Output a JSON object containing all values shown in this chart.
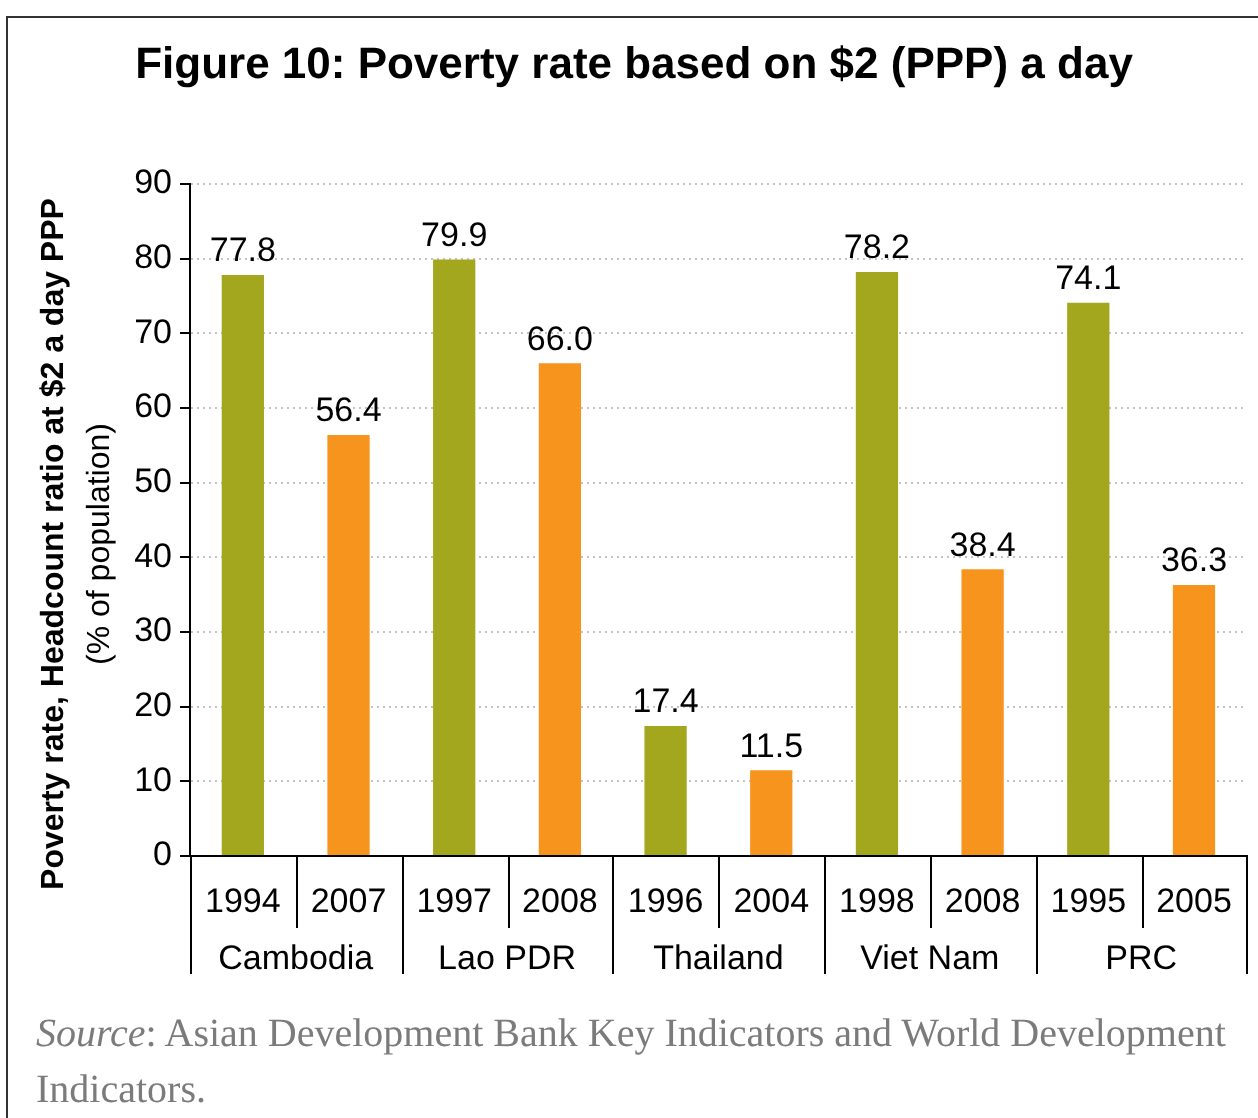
{
  "chart_data": {
    "type": "bar",
    "title": "Figure 10: Poverty rate based on $2 (PPP) a day",
    "ylabel": "Poverty rate, Headcount ratio at $2 a day PPP\n(% of population)",
    "categories": [
      "1994",
      "2007",
      "1997",
      "2008",
      "1996",
      "2004",
      "1998",
      "2008",
      "1995",
      "2005"
    ],
    "values": [
      77.8,
      56.4,
      79.9,
      66.0,
      17.4,
      11.5,
      78.2,
      38.4,
      74.1,
      36.3
    ],
    "colors": [
      "#a2a71e",
      "#f7941e",
      "#a2a71e",
      "#f7941e",
      "#a2a71e",
      "#f7941e",
      "#a2a71e",
      "#f7941e",
      "#a2a71e",
      "#f7941e"
    ],
    "value_labels": [
      "77.8",
      "56.4",
      "79.9",
      "66.0",
      "17.4",
      "11.5",
      "78.2",
      "38.4",
      "74.1",
      "36.3"
    ],
    "ylim": [
      0,
      90
    ],
    "yticks": [
      0,
      10,
      20,
      30,
      40,
      50,
      60,
      70,
      80,
      90
    ],
    "grid": "y",
    "annotations": [
      "Cambodia",
      "Lao PDR",
      "Thailand",
      "Viet Nam",
      "PRC",
      "Source: Asian Development Bank Key Indicators and World Development Indicators."
    ]
  }
}
